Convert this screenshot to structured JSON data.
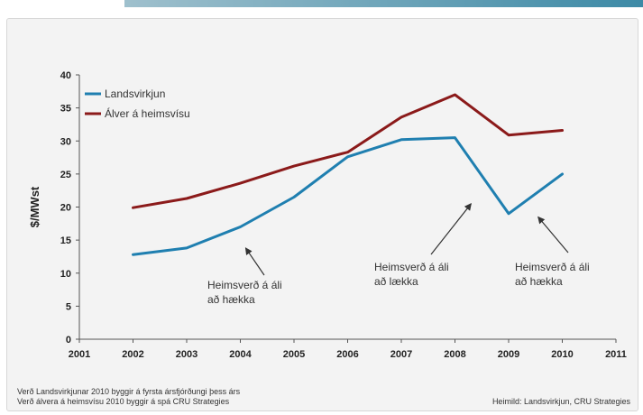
{
  "chart_data": {
    "type": "line",
    "x": [
      2001,
      2002,
      2003,
      2004,
      2005,
      2006,
      2007,
      2008,
      2009,
      2010,
      2011
    ],
    "x_ticks": [
      "2001",
      "2002",
      "2003",
      "2004",
      "2005",
      "2006",
      "2007",
      "2008",
      "2009",
      "2010",
      "2011"
    ],
    "y_ticks": [
      "0",
      "5",
      "10",
      "15",
      "20",
      "25",
      "30",
      "35",
      "40"
    ],
    "ylim": [
      0,
      40
    ],
    "xlim": [
      2001,
      2011
    ],
    "ylabel": "$/MWst",
    "grid": false,
    "legend_position": "top-left",
    "series": [
      {
        "name": "Landsvirkjun",
        "color": "#1f7fb0",
        "points": [
          [
            2002,
            12.8
          ],
          [
            2003,
            13.8
          ],
          [
            2004,
            17.0
          ],
          [
            2005,
            21.5
          ],
          [
            2006,
            27.6
          ],
          [
            2007,
            30.2
          ],
          [
            2008,
            30.5
          ],
          [
            2009,
            19.0
          ],
          [
            2010,
            25.0
          ]
        ]
      },
      {
        "name": "Álver á heimsvísu",
        "color": "#8b1a1a",
        "points": [
          [
            2002,
            19.9
          ],
          [
            2003,
            21.3
          ],
          [
            2004,
            23.6
          ],
          [
            2005,
            26.2
          ],
          [
            2006,
            28.3
          ],
          [
            2007,
            33.6
          ],
          [
            2008,
            37.0
          ],
          [
            2009,
            30.9
          ],
          [
            2010,
            31.6
          ]
        ]
      }
    ],
    "annotations": [
      {
        "lines": [
          "Heimsverð á áli",
          "að hækka"
        ],
        "target": [
          2004.1,
          13.8
        ]
      },
      {
        "lines": [
          "Heimsverð á áli",
          "að lækka"
        ],
        "target": [
          2008.3,
          20.5
        ]
      },
      {
        "lines": [
          "Heimsverð á áli",
          "að hækka"
        ],
        "target": [
          2009.55,
          18.5
        ]
      }
    ]
  },
  "footnotes": {
    "line1": "Verð Landsvirkjunar 2010 byggir á fyrsta ársfjórðungi þess árs",
    "line2": "Verð álvera á heimsvísu 2010 byggir á spá CRU Strategies",
    "source": "Heimild: Landsvirkjun, CRU Strategies"
  }
}
